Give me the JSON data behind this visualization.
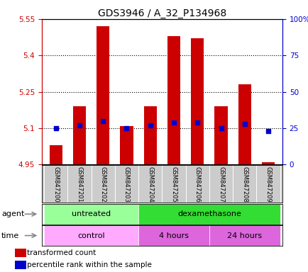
{
  "title": "GDS3946 / A_32_P134968",
  "samples": [
    "GSM847200",
    "GSM847201",
    "GSM847202",
    "GSM847203",
    "GSM847204",
    "GSM847205",
    "GSM847206",
    "GSM847207",
    "GSM847208",
    "GSM847209"
  ],
  "transformed_count": [
    5.03,
    5.19,
    5.52,
    5.11,
    5.19,
    5.48,
    5.47,
    5.19,
    5.28,
    4.96
  ],
  "percentile_rank": [
    25,
    27,
    30,
    25,
    27,
    29,
    29,
    25,
    28,
    23
  ],
  "base_value": 4.95,
  "ylim_left": [
    4.95,
    5.55
  ],
  "ylim_right": [
    0,
    100
  ],
  "yticks_left": [
    4.95,
    5.1,
    5.25,
    5.4,
    5.55
  ],
  "yticks_right": [
    0,
    25,
    50,
    75,
    100
  ],
  "ytick_labels_left": [
    "4.95",
    "5.1",
    "5.25",
    "5.4",
    "5.55"
  ],
  "ytick_labels_right": [
    "0",
    "25",
    "50",
    "75",
    "100%"
  ],
  "bar_color": "#cc0000",
  "dot_color": "#0000cc",
  "agent_groups": [
    {
      "label": "untreated",
      "start": 0,
      "end": 4,
      "color": "#99ff99"
    },
    {
      "label": "dexamethasone",
      "start": 4,
      "end": 10,
      "color": "#33dd33"
    }
  ],
  "time_groups": [
    {
      "label": "control",
      "start": 0,
      "end": 4,
      "color": "#ffaaff"
    },
    {
      "label": "4 hours",
      "start": 4,
      "end": 7,
      "color": "#dd66dd"
    },
    {
      "label": "24 hours",
      "start": 7,
      "end": 10,
      "color": "#dd66dd"
    }
  ],
  "legend_bar_color": "#cc0000",
  "legend_dot_color": "#0000cc",
  "left_axis_color": "#cc0000",
  "right_axis_color": "#0000cc",
  "bar_width": 0.55,
  "dot_size": 25,
  "title_fontsize": 10,
  "tick_fontsize": 7.5,
  "sample_fontsize": 6,
  "row_fontsize": 8,
  "legend_fontsize": 7.5,
  "sample_bg": "#cccccc",
  "sample_divider": "#ffffff"
}
